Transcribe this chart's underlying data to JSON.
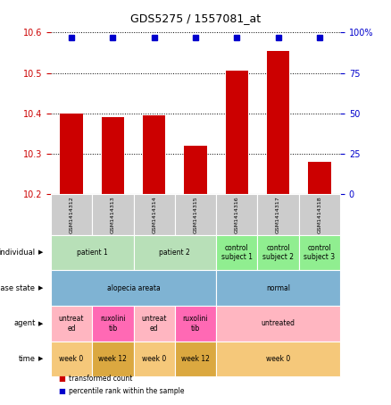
{
  "title": "GDS5275 / 1557081_at",
  "samples": [
    "GSM1414312",
    "GSM1414313",
    "GSM1414314",
    "GSM1414315",
    "GSM1414316",
    "GSM1414317",
    "GSM1414318"
  ],
  "bar_values": [
    10.4,
    10.39,
    10.395,
    10.32,
    10.505,
    10.555,
    10.28
  ],
  "dot_values": [
    97,
    97,
    97,
    97,
    97,
    97,
    97
  ],
  "ylim_left": [
    10.2,
    10.6
  ],
  "ylim_right": [
    0,
    100
  ],
  "yticks_left": [
    10.2,
    10.3,
    10.4,
    10.5,
    10.6
  ],
  "yticks_right": [
    0,
    25,
    50,
    75,
    100
  ],
  "ytick_right_labels": [
    "0",
    "25",
    "50",
    "75",
    "100%"
  ],
  "bar_color": "#cc0000",
  "dot_color": "#0000cc",
  "bar_width": 0.55,
  "annotation_rows": [
    {
      "label": "individual",
      "cells": [
        {
          "text": "patient 1",
          "span": [
            0,
            1
          ],
          "color": "#b8e0b8"
        },
        {
          "text": "patient 2",
          "span": [
            2,
            3
          ],
          "color": "#b8e0b8"
        },
        {
          "text": "control\nsubject 1",
          "span": [
            4,
            4
          ],
          "color": "#90ee90"
        },
        {
          "text": "control\nsubject 2",
          "span": [
            5,
            5
          ],
          "color": "#90ee90"
        },
        {
          "text": "control\nsubject 3",
          "span": [
            6,
            6
          ],
          "color": "#90ee90"
        }
      ]
    },
    {
      "label": "disease state",
      "cells": [
        {
          "text": "alopecia areata",
          "span": [
            0,
            3
          ],
          "color": "#7fb3d3"
        },
        {
          "text": "normal",
          "span": [
            4,
            6
          ],
          "color": "#7fb3d3"
        }
      ]
    },
    {
      "label": "agent",
      "cells": [
        {
          "text": "untreat\ned",
          "span": [
            0,
            0
          ],
          "color": "#ffb6c1"
        },
        {
          "text": "ruxolini\ntib",
          "span": [
            1,
            1
          ],
          "color": "#ff69b4"
        },
        {
          "text": "untreat\ned",
          "span": [
            2,
            2
          ],
          "color": "#ffb6c1"
        },
        {
          "text": "ruxolini\ntib",
          "span": [
            3,
            3
          ],
          "color": "#ff69b4"
        },
        {
          "text": "untreated",
          "span": [
            4,
            6
          ],
          "color": "#ffb6c1"
        }
      ]
    },
    {
      "label": "time",
      "cells": [
        {
          "text": "week 0",
          "span": [
            0,
            0
          ],
          "color": "#f5c87a"
        },
        {
          "text": "week 12",
          "span": [
            1,
            1
          ],
          "color": "#dba840"
        },
        {
          "text": "week 0",
          "span": [
            2,
            2
          ],
          "color": "#f5c87a"
        },
        {
          "text": "week 12",
          "span": [
            3,
            3
          ],
          "color": "#dba840"
        },
        {
          "text": "week 0",
          "span": [
            4,
            6
          ],
          "color": "#f5c87a"
        }
      ]
    }
  ],
  "legend_items": [
    {
      "label": "transformed count",
      "color": "#cc0000"
    },
    {
      "label": "percentile rank within the sample",
      "color": "#0000cc"
    }
  ],
  "sample_box_color": "#cccccc",
  "fig_width": 4.38,
  "fig_height": 4.53,
  "dpi": 100
}
